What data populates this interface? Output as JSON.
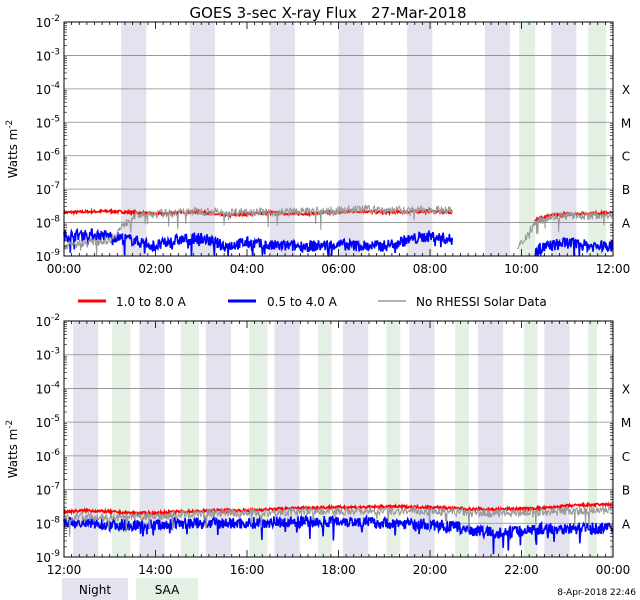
{
  "title": "GOES 3-sec X-ray Flux   27-Mar-2018",
  "ylabel": "Watts m",
  "ylabel_sup": "-2",
  "footer": "8-Apr-2018 22:46",
  "flare_classes": [
    "X",
    "M",
    "C",
    "B",
    "A"
  ],
  "flare_class_values": [
    0.0001,
    1e-05,
    1e-06,
    1e-07,
    1e-08
  ],
  "y_tick_labels": [
    {
      "base": "10",
      "exp": "-9",
      "value": 1e-09
    },
    {
      "base": "10",
      "exp": "-8",
      "value": 1e-08
    },
    {
      "base": "10",
      "exp": "-7",
      "value": 1e-07
    },
    {
      "base": "10",
      "exp": "-6",
      "value": 1e-06
    },
    {
      "base": "10",
      "exp": "-5",
      "value": 1e-05
    },
    {
      "base": "10",
      "exp": "-4",
      "value": 0.0001
    },
    {
      "base": "10",
      "exp": "-3",
      "value": 0.001
    },
    {
      "base": "10",
      "exp": "-2",
      "value": 0.01
    }
  ],
  "legend": {
    "long": "1.0 to 8.0 A",
    "short": "0.5 to 4.0 A",
    "rhessi": "No RHESSI Solar Data",
    "night": "Night",
    "saa": "SAA"
  },
  "colors": {
    "long": "#ff0000",
    "short": "#0000ff",
    "rhessi": "#999999",
    "night": "#e3e3f0",
    "saa": "#e3f0e3",
    "grid": "#888888"
  },
  "chart_data": [
    {
      "type": "line",
      "title": "GOES 3-sec X-ray Flux   27-Mar-2018",
      "ylabel": "Watts m-2",
      "yscale": "log",
      "ylim": [
        1e-09,
        0.01
      ],
      "xlim": [
        "00:00",
        "12:00"
      ],
      "x_tick_labels": [
        "00:00",
        "02:00",
        "04:00",
        "06:00",
        "08:00",
        "10:00",
        "12:00"
      ],
      "night_intervals": [
        [
          1.25,
          1.8
        ],
        [
          2.75,
          3.3
        ],
        [
          4.5,
          5.05
        ],
        [
          6.0,
          6.55
        ],
        [
          7.5,
          8.05
        ],
        [
          9.2,
          9.75
        ],
        [
          10.65,
          11.2
        ]
      ],
      "saa_intervals": [
        [
          9.95,
          10.3
        ],
        [
          11.45,
          11.85
        ]
      ],
      "series": [
        {
          "name": "1.0 to 8.0 A",
          "x": [
            0,
            0.5,
            1,
            1.5,
            2,
            2.5,
            3,
            3.5,
            4,
            4.5,
            5,
            5.5,
            6,
            6.5,
            7,
            7.5,
            8,
            8.5,
            10.3,
            10.6,
            11,
            11.5,
            12
          ],
          "y": [
            2e-08,
            2.1e-08,
            2.2e-08,
            2e-08,
            1.8e-08,
            2e-08,
            2.1e-08,
            1.6e-08,
            1.8e-08,
            2e-08,
            1.8e-08,
            1.9e-08,
            2e-08,
            2.2e-08,
            2e-08,
            2.1e-08,
            2.2e-08,
            2e-08,
            1.2e-08,
            1.6e-08,
            1.8e-08,
            1.9e-08,
            2e-08
          ]
        },
        {
          "name": "0.5 to 4.0 A",
          "x": [
            0,
            0.5,
            1,
            1.5,
            2,
            2.5,
            3,
            3.5,
            4,
            4.5,
            5,
            5.5,
            6,
            6.5,
            7,
            7.5,
            8,
            8.5,
            10.3,
            10.6,
            11,
            11.5,
            12
          ],
          "y": [
            4e-09,
            4.5e-09,
            4e-09,
            3e-09,
            2e-09,
            3e-09,
            3.5e-09,
            2e-09,
            2.5e-09,
            2e-09,
            2e-09,
            2e-09,
            2.2e-09,
            2e-09,
            2e-09,
            3e-09,
            4e-09,
            3e-09,
            1.5e-09,
            2e-09,
            2.5e-09,
            2e-09,
            2e-09
          ]
        },
        {
          "name": "No RHESSI Solar Data",
          "x": [
            0,
            0.5,
            1,
            1.5,
            2,
            2.5,
            3,
            3.5,
            4,
            4.5,
            5,
            5.5,
            6,
            6.5,
            7,
            7.5,
            8,
            8.5,
            9.9,
            10.3,
            10.6,
            11,
            11.5,
            12
          ],
          "y": [
            2e-09,
            2.5e-09,
            3e-09,
            1.6e-08,
            1.8e-08,
            2e-08,
            2.2e-08,
            2e-08,
            2.2e-08,
            2e-08,
            2.1e-08,
            2.2e-08,
            2.3e-08,
            2.5e-08,
            2.4e-08,
            2.3e-08,
            2.4e-08,
            2.3e-08,
            1.5e-09,
            1e-08,
            1.5e-08,
            1.6e-08,
            1.6e-08,
            1.8e-08
          ]
        }
      ]
    },
    {
      "type": "line",
      "ylabel": "Watts m-2",
      "yscale": "log",
      "ylim": [
        1e-09,
        0.01
      ],
      "xlim": [
        "12:00",
        "00:00"
      ],
      "x_tick_labels": [
        "12:00",
        "14:00",
        "16:00",
        "18:00",
        "20:00",
        "22:00",
        "00:00"
      ],
      "night_intervals": [
        [
          12.2,
          12.75
        ],
        [
          13.65,
          14.2
        ],
        [
          15.1,
          15.65
        ],
        [
          16.6,
          17.15
        ],
        [
          18.1,
          18.65
        ],
        [
          19.55,
          20.1
        ],
        [
          21.05,
          21.6
        ],
        [
          22.5,
          23.05
        ],
        [
          23.95,
          24.0
        ]
      ],
      "saa_intervals": [
        [
          13.05,
          13.45
        ],
        [
          14.55,
          14.95
        ],
        [
          16.05,
          16.45
        ],
        [
          17.55,
          17.85
        ],
        [
          19.05,
          19.35
        ],
        [
          20.55,
          20.85
        ],
        [
          22.05,
          22.35
        ],
        [
          23.45,
          23.65
        ]
      ],
      "series": [
        {
          "name": "1.0 to 8.0 A",
          "x": [
            12,
            12.5,
            13,
            13.5,
            14,
            14.5,
            15,
            15.5,
            16,
            16.5,
            17,
            17.5,
            18,
            18.5,
            19,
            19.5,
            20,
            20.5,
            21,
            21.5,
            22,
            22.5,
            23,
            23.5,
            24
          ],
          "y": [
            2.2e-08,
            2.4e-08,
            2.2e-08,
            2e-08,
            2e-08,
            2.2e-08,
            2.3e-08,
            2.4e-08,
            2.4e-08,
            2.6e-08,
            2.8e-08,
            2.9e-08,
            3e-08,
            3e-08,
            3.1e-08,
            3.1e-08,
            3e-08,
            2.8e-08,
            2.6e-08,
            2.6e-08,
            2.7e-08,
            2.8e-08,
            3.3e-08,
            3.5e-08,
            3.6e-08
          ]
        },
        {
          "name": "0.5 to 4.0 A",
          "x": [
            12,
            12.5,
            13,
            13.5,
            14,
            14.5,
            15,
            15.5,
            16,
            16.5,
            17,
            17.5,
            18,
            18.5,
            19,
            19.5,
            20,
            20.5,
            21,
            21.5,
            22,
            22.5,
            23,
            23.5,
            24
          ],
          "y": [
            1e-08,
            1e-08,
            9e-09,
            9e-09,
            9e-09,
            1e-08,
            1e-08,
            1e-08,
            1e-08,
            1.1e-08,
            1.1e-08,
            1.1e-08,
            1.2e-08,
            1.1e-08,
            1e-08,
            1e-08,
            9e-09,
            8e-09,
            6e-09,
            5e-09,
            6e-09,
            7e-09,
            7e-09,
            7e-09,
            7e-09
          ]
        },
        {
          "name": "No RHESSI Solar Data",
          "x": [
            12,
            12.5,
            13,
            13.5,
            14,
            14.5,
            15,
            15.5,
            16,
            16.5,
            17,
            17.5,
            18,
            18.5,
            19,
            19.5,
            20,
            20.5,
            21,
            21.5,
            22,
            22.5,
            23,
            23.5,
            24
          ],
          "y": [
            1.5e-08,
            1.6e-08,
            1.4e-08,
            1.5e-08,
            1.6e-08,
            1.8e-08,
            1.9e-08,
            2e-08,
            2e-08,
            2.1e-08,
            2.2e-08,
            2.3e-08,
            2.3e-08,
            2.4e-08,
            2.4e-08,
            2.3e-08,
            2.3e-08,
            2.2e-08,
            2e-08,
            2e-08,
            2.1e-08,
            2.2e-08,
            2.3e-08,
            2.4e-08,
            2.4e-08
          ]
        }
      ]
    }
  ]
}
